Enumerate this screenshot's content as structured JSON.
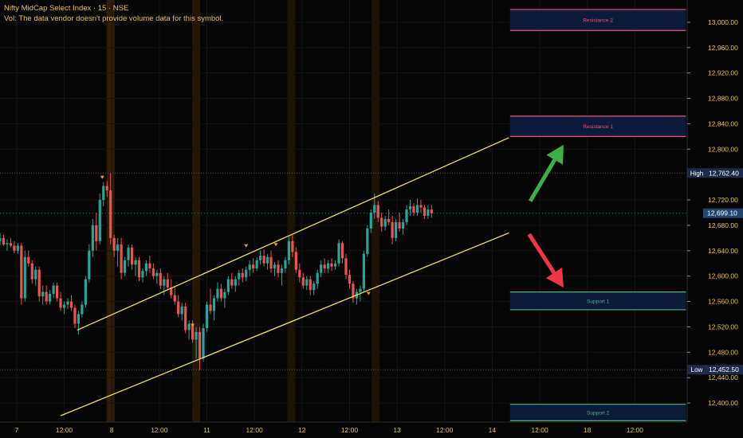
{
  "header": {
    "symbol": "Nifty MidCap Select Index · 15 · NSE",
    "volume_note": "Vol: The data vendor doesn't provide volume data for this symbol."
  },
  "colors": {
    "background": "#050505",
    "up_candle": "#26a69a",
    "down_candle": "#ef5350",
    "channel": "#f0e060",
    "resistance": "#f0506e",
    "support": "#4caf7d",
    "zone_fill": "#0c1a3c",
    "arrow_up": "#3fae49",
    "arrow_down": "#f23645",
    "text": "#e8c24a"
  },
  "chart_data": {
    "type": "candlestick",
    "title": "Nifty MidCap Select Index · 15 · NSE",
    "ylim": [
      12370,
      13035
    ],
    "y_ticks": [
      {
        "value": 13000,
        "label": "13,000.00"
      },
      {
        "value": 12960,
        "label": "12,960.00"
      },
      {
        "value": 12920,
        "label": "12,920.00"
      },
      {
        "value": 12880,
        "label": "12,880.00"
      },
      {
        "value": 12840,
        "label": "12,840.00"
      },
      {
        "value": 12800,
        "label": "12,800.00"
      },
      {
        "value": 12720,
        "label": "12,720.00"
      },
      {
        "value": 12680,
        "label": "12,680.00"
      },
      {
        "value": 12640,
        "label": "12,640.00"
      },
      {
        "value": 12600,
        "label": "12,600.00"
      },
      {
        "value": 12560,
        "label": "12,560.00"
      },
      {
        "value": 12520,
        "label": "12,520.00"
      },
      {
        "value": 12480,
        "label": "12,480.00"
      },
      {
        "value": 12440,
        "label": "12,440.00"
      },
      {
        "value": 12400,
        "label": "12,400.00"
      }
    ],
    "x_ticks": [
      "7",
      "12:00",
      "8",
      "12:00",
      "11",
      "12:00",
      "12",
      "12:00",
      "13",
      "12:00",
      "14",
      "12:00",
      "18",
      "12:00"
    ],
    "x_tick_positions": [
      0,
      2,
      4,
      6,
      8,
      10,
      12,
      14,
      16,
      18,
      20,
      22,
      24,
      26
    ],
    "x_range": [
      -0.7,
      28.2
    ],
    "last_price": {
      "value": 12699.1,
      "label": "12,699.10"
    },
    "high": {
      "tag": "High",
      "value": 12762.4,
      "label": "12,762.40"
    },
    "low": {
      "tag": "Low",
      "value": 12452.5,
      "label": "12,452.50"
    },
    "zones": [
      {
        "label": "Resistance 2",
        "top": 13020,
        "bottom": 12987,
        "kind": "resistance"
      },
      {
        "label": "Resistance 1",
        "top": 12852,
        "bottom": 12820,
        "kind": "resistance"
      },
      {
        "label": "Support 1",
        "top": 12575,
        "bottom": 12547,
        "kind": "support"
      },
      {
        "label": "Support 2",
        "top": 12398,
        "bottom": 12372,
        "kind": "support"
      }
    ],
    "channel": [
      {
        "x1": 2.55,
        "y1": 12515,
        "x2": 20.7,
        "y2": 12818
      },
      {
        "x1": 1.85,
        "y1": 12380,
        "x2": 20.7,
        "y2": 12668
      }
    ],
    "arrows": [
      {
        "direction": "up",
        "x1": 21.6,
        "y1": 12718,
        "x2": 23.0,
        "y2": 12807
      },
      {
        "direction": "down",
        "x1": 21.55,
        "y1": 12666,
        "x2": 23.0,
        "y2": 12582
      }
    ],
    "candles": [
      [
        -0.7,
        12655,
        12668,
        12648,
        12660
      ],
      [
        -0.55,
        12660,
        12665,
        12648,
        12650
      ],
      [
        -0.4,
        12650,
        12658,
        12640,
        12652
      ],
      [
        -0.25,
        12652,
        12660,
        12645,
        12648
      ],
      [
        -0.1,
        12648,
        12655,
        12636,
        12640
      ],
      [
        0.05,
        12640,
        12652,
        12635,
        12648
      ],
      [
        0.2,
        12648,
        12652,
        12555,
        12565
      ],
      [
        0.35,
        12565,
        12640,
        12560,
        12630
      ],
      [
        0.5,
        12630,
        12640,
        12615,
        12620
      ],
      [
        0.65,
        12620,
        12625,
        12588,
        12595
      ],
      [
        0.8,
        12595,
        12615,
        12585,
        12610
      ],
      [
        0.95,
        12610,
        12615,
        12560,
        12568
      ],
      [
        1.1,
        12568,
        12585,
        12555,
        12575
      ],
      [
        1.25,
        12575,
        12585,
        12555,
        12560
      ],
      [
        1.4,
        12560,
        12578,
        12555,
        12572
      ],
      [
        1.55,
        12572,
        12590,
        12565,
        12585
      ],
      [
        1.7,
        12585,
        12590,
        12560,
        12565
      ],
      [
        1.85,
        12565,
        12575,
        12545,
        12550
      ],
      [
        2.0,
        12550,
        12560,
        12540,
        12555
      ],
      [
        2.15,
        12555,
        12565,
        12548,
        12560
      ],
      [
        2.3,
        12560,
        12570,
        12545,
        12550
      ],
      [
        2.45,
        12550,
        12555,
        12518,
        12525
      ],
      [
        2.6,
        12525,
        12545,
        12508,
        12540
      ],
      [
        2.75,
        12540,
        12560,
        12535,
        12555
      ],
      [
        2.9,
        12555,
        12600,
        12550,
        12595
      ],
      [
        3.05,
        12595,
        12650,
        12590,
        12640
      ],
      [
        3.2,
        12640,
        12690,
        12630,
        12680
      ],
      [
        3.35,
        12680,
        12700,
        12640,
        12655
      ],
      [
        3.5,
        12655,
        12730,
        12650,
        12720
      ],
      [
        3.65,
        12720,
        12748,
        12710,
        12742
      ],
      [
        3.8,
        12742,
        12750,
        12725,
        12735
      ],
      [
        3.95,
        12735,
        12762,
        12650,
        12660
      ],
      [
        4.1,
        12660,
        12665,
        12630,
        12640
      ],
      [
        4.25,
        12640,
        12660,
        12615,
        12650
      ],
      [
        4.4,
        12650,
        12660,
        12595,
        12605
      ],
      [
        4.55,
        12605,
        12630,
        12600,
        12625
      ],
      [
        4.7,
        12625,
        12650,
        12615,
        12645
      ],
      [
        4.85,
        12645,
        12650,
        12610,
        12618
      ],
      [
        5.0,
        12618,
        12630,
        12600,
        12625
      ],
      [
        5.15,
        12625,
        12630,
        12592,
        12598
      ],
      [
        5.3,
        12598,
        12612,
        12590,
        12608
      ],
      [
        5.45,
        12608,
        12625,
        12600,
        12620
      ],
      [
        5.6,
        12620,
        12632,
        12605,
        12612
      ],
      [
        5.75,
        12612,
        12620,
        12595,
        12600
      ],
      [
        5.9,
        12600,
        12610,
        12588,
        12605
      ],
      [
        6.05,
        12605,
        12612,
        12580,
        12585
      ],
      [
        6.2,
        12585,
        12600,
        12570,
        12595
      ],
      [
        6.35,
        12595,
        12605,
        12578,
        12582
      ],
      [
        6.5,
        12582,
        12595,
        12565,
        12570
      ],
      [
        6.65,
        12570,
        12585,
        12555,
        12560
      ],
      [
        6.8,
        12560,
        12570,
        12535,
        12540
      ],
      [
        6.95,
        12540,
        12558,
        12530,
        12552
      ],
      [
        7.1,
        12552,
        12558,
        12510,
        12515
      ],
      [
        7.25,
        12515,
        12530,
        12500,
        12525
      ],
      [
        7.4,
        12525,
        12530,
        12495,
        12500
      ],
      [
        7.55,
        12500,
        12520,
        12470,
        12512
      ],
      [
        7.7,
        12512,
        12520,
        12452,
        12470
      ],
      [
        7.85,
        12470,
        12525,
        12465,
        12518
      ],
      [
        8.0,
        12518,
        12560,
        12512,
        12555
      ],
      [
        8.15,
        12555,
        12580,
        12540,
        12545
      ],
      [
        8.3,
        12545,
        12570,
        12530,
        12565
      ],
      [
        8.45,
        12565,
        12590,
        12560,
        12580
      ],
      [
        8.6,
        12580,
        12588,
        12560,
        12565
      ],
      [
        8.75,
        12565,
        12580,
        12550,
        12575
      ],
      [
        8.9,
        12575,
        12600,
        12570,
        12595
      ],
      [
        9.05,
        12595,
        12605,
        12580,
        12585
      ],
      [
        9.2,
        12585,
        12600,
        12575,
        12595
      ],
      [
        9.35,
        12595,
        12610,
        12585,
        12605
      ],
      [
        9.5,
        12605,
        12612,
        12590,
        12598
      ],
      [
        9.65,
        12598,
        12615,
        12592,
        12610
      ],
      [
        9.8,
        12610,
        12625,
        12600,
        12618
      ],
      [
        9.95,
        12618,
        12628,
        12605,
        12612
      ],
      [
        10.1,
        12612,
        12630,
        12608,
        12625
      ],
      [
        10.25,
        12625,
        12640,
        12618,
        12632
      ],
      [
        10.4,
        12632,
        12642,
        12615,
        12620
      ],
      [
        10.55,
        12620,
        12635,
        12610,
        12630
      ],
      [
        10.7,
        12630,
        12640,
        12605,
        12612
      ],
      [
        10.85,
        12612,
        12622,
        12600,
        12618
      ],
      [
        11.0,
        12618,
        12625,
        12598,
        12605
      ],
      [
        11.15,
        12605,
        12618,
        12585,
        12612
      ],
      [
        11.3,
        12612,
        12630,
        12605,
        12625
      ],
      [
        11.45,
        12625,
        12662,
        12618,
        12655
      ],
      [
        11.6,
        12655,
        12665,
        12630,
        12638
      ],
      [
        11.75,
        12638,
        12645,
        12605,
        12610
      ],
      [
        11.9,
        12610,
        12620,
        12590,
        12598
      ],
      [
        12.05,
        12598,
        12605,
        12580,
        12585
      ],
      [
        12.2,
        12585,
        12600,
        12578,
        12595
      ],
      [
        12.35,
        12595,
        12600,
        12570,
        12578
      ],
      [
        12.5,
        12578,
        12592,
        12570,
        12588
      ],
      [
        12.65,
        12588,
        12610,
        12580,
        12605
      ],
      [
        12.8,
        12605,
        12625,
        12598,
        12618
      ],
      [
        12.95,
        12618,
        12628,
        12605,
        12612
      ],
      [
        13.1,
        12612,
        12625,
        12605,
        12620
      ],
      [
        13.25,
        12620,
        12628,
        12608,
        12615
      ],
      [
        13.4,
        12615,
        12625,
        12610,
        12620
      ],
      [
        13.55,
        12620,
        12658,
        12615,
        12652
      ],
      [
        13.7,
        12652,
        12655,
        12620,
        12628
      ],
      [
        13.85,
        12628,
        12635,
        12595,
        12602
      ],
      [
        14.0,
        12602,
        12610,
        12580,
        12588
      ],
      [
        14.15,
        12588,
        12592,
        12558,
        12565
      ],
      [
        14.3,
        12565,
        12580,
        12555,
        12575
      ],
      [
        14.45,
        12575,
        12585,
        12560,
        12580
      ],
      [
        14.6,
        12580,
        12640,
        12575,
        12635
      ],
      [
        14.75,
        12635,
        12680,
        12630,
        12675
      ],
      [
        14.9,
        12675,
        12705,
        12668,
        12700
      ],
      [
        15.05,
        12700,
        12730,
        12690,
        12712
      ],
      [
        15.2,
        12712,
        12718,
        12685,
        12692
      ],
      [
        15.35,
        12692,
        12700,
        12670,
        12678
      ],
      [
        15.5,
        12678,
        12695,
        12672,
        12690
      ],
      [
        15.65,
        12690,
        12705,
        12680,
        12685
      ],
      [
        15.8,
        12685,
        12695,
        12650,
        12660
      ],
      [
        15.95,
        12660,
        12690,
        12655,
        12685
      ],
      [
        16.1,
        12685,
        12700,
        12670,
        12675
      ],
      [
        16.25,
        12675,
        12690,
        12665,
        12685
      ],
      [
        16.4,
        12685,
        12712,
        12680,
        12705
      ],
      [
        16.55,
        12705,
        12720,
        12695,
        12710
      ],
      [
        16.7,
        12710,
        12715,
        12695,
        12700
      ],
      [
        16.85,
        12700,
        12722,
        12695,
        12712
      ],
      [
        17.0,
        12712,
        12720,
        12700,
        12708
      ],
      [
        17.15,
        12708,
        12712,
        12690,
        12695
      ],
      [
        17.3,
        12695,
        12712,
        12690,
        12705
      ],
      [
        17.45,
        12705,
        12712,
        12692,
        12699
      ]
    ],
    "markers": [
      {
        "x": 3.6,
        "y": 12748
      },
      {
        "x": 7.4,
        "y": 12515
      },
      {
        "x": 9.65,
        "y": 12640
      },
      {
        "x": 10.9,
        "y": 12642
      },
      {
        "x": 14.8,
        "y": 12565
      }
    ]
  }
}
